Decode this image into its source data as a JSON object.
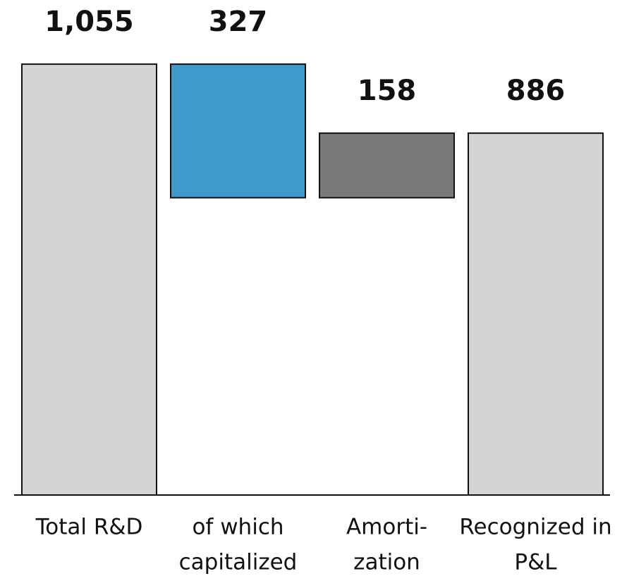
{
  "chart_data": {
    "type": "waterfall",
    "categories": [
      [
        "Total R&D"
      ],
      [
        "of which",
        "capitalized"
      ],
      [
        "Amorti-",
        "zation"
      ],
      [
        "Recognized in",
        "P&L"
      ]
    ],
    "measures": [
      "total",
      "decrease",
      "increase",
      "total"
    ],
    "values": [
      1055,
      327,
      158,
      886
    ],
    "value_labels": [
      "1,055",
      "327",
      "158",
      "886"
    ],
    "colors": [
      "#d4d4d6",
      "#3f9ac9",
      "#78797b",
      "#d4d4d6"
    ],
    "ylim": [
      0,
      1100
    ]
  }
}
